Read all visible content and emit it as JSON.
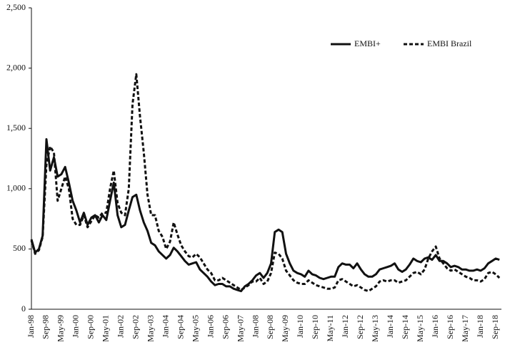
{
  "chart_data": {
    "type": "line",
    "categories": [
      "Jan-98",
      null,
      null,
      null,
      "Sep-98",
      null,
      null,
      null,
      "May-99",
      null,
      null,
      null,
      "Jan-00",
      null,
      null,
      null,
      "Sep-00",
      null,
      null,
      null,
      "May-01",
      null,
      null,
      null,
      "Jan-02",
      null,
      null,
      null,
      "Sep-02",
      null,
      null,
      null,
      "May-03",
      null,
      null,
      null,
      "Jan-04",
      null,
      null,
      null,
      "Sep-04",
      null,
      null,
      null,
      "May-05",
      null,
      null,
      null,
      "Jan-06",
      null,
      null,
      null,
      "Sep-06",
      null,
      null,
      null,
      "May-07",
      null,
      null,
      null,
      "Jan-08",
      null,
      null,
      null,
      "Sep-08",
      null,
      null,
      null,
      "May-09",
      null,
      null,
      null,
      "Jan-10",
      null,
      null,
      null,
      "Sep-10",
      null,
      null,
      null,
      "May-11",
      null,
      null,
      null,
      "Jan-12",
      null,
      null,
      null,
      "Sep-12",
      null,
      null,
      null,
      "May-13",
      null,
      null,
      null,
      "Jan-14",
      null,
      null,
      null,
      "Sep-14",
      null,
      null,
      null,
      "May-15",
      null,
      null,
      null,
      "Jan-16",
      null,
      null,
      null,
      "Sep-16",
      null,
      null,
      null,
      "May-17",
      null,
      null,
      null,
      "Jan-18",
      null,
      null,
      null,
      "Sep-18",
      null
    ],
    "series": [
      {
        "name": "EMBI+",
        "color": "#111111",
        "dash": false,
        "values": [
          580,
          470,
          500,
          610,
          1410,
          1150,
          1260,
          1100,
          1120,
          1180,
          1050,
          900,
          820,
          720,
          800,
          700,
          760,
          780,
          720,
          780,
          740,
          900,
          1050,
          780,
          680,
          700,
          820,
          930,
          950,
          820,
          720,
          650,
          550,
          530,
          480,
          450,
          420,
          450,
          510,
          480,
          440,
          400,
          370,
          380,
          390,
          330,
          300,
          270,
          230,
          200,
          210,
          210,
          190,
          190,
          170,
          160,
          150,
          190,
          210,
          240,
          280,
          300,
          260,
          300,
          380,
          640,
          660,
          640,
          460,
          380,
          320,
          300,
          290,
          270,
          320,
          290,
          280,
          260,
          250,
          260,
          270,
          270,
          350,
          380,
          370,
          370,
          340,
          380,
          330,
          290,
          270,
          270,
          290,
          330,
          340,
          350,
          360,
          380,
          330,
          310,
          330,
          370,
          420,
          400,
          390,
          420,
          430,
          410,
          450,
          400,
          400,
          380,
          350,
          360,
          350,
          330,
          330,
          320,
          320,
          330,
          320,
          340,
          380,
          400,
          420,
          410
        ]
      },
      {
        "name": "EMBI Brazil",
        "color": "#111111",
        "dash": true,
        "values": [
          570,
          460,
          490,
          600,
          1200,
          1350,
          1300,
          900,
          1000,
          1100,
          1000,
          750,
          700,
          700,
          780,
          680,
          730,
          780,
          760,
          800,
          800,
          1000,
          1150,
          880,
          800,
          780,
          1000,
          1700,
          1950,
          1600,
          1300,
          950,
          780,
          780,
          650,
          600,
          500,
          560,
          720,
          620,
          530,
          480,
          440,
          430,
          460,
          430,
          380,
          330,
          300,
          240,
          240,
          260,
          240,
          220,
          200,
          180,
          160,
          180,
          200,
          230,
          230,
          260,
          210,
          230,
          300,
          470,
          460,
          420,
          320,
          280,
          240,
          220,
          210,
          210,
          240,
          220,
          200,
          190,
          180,
          170,
          170,
          180,
          240,
          250,
          230,
          210,
          190,
          200,
          180,
          160,
          150,
          170,
          190,
          230,
          240,
          230,
          240,
          240,
          220,
          230,
          240,
          270,
          300,
          310,
          290,
          330,
          420,
          480,
          520,
          420,
          380,
          340,
          320,
          330,
          310,
          290,
          270,
          260,
          240,
          240,
          230,
          250,
          300,
          310,
          290,
          260
        ]
      }
    ],
    "ylim": [
      0,
      2500
    ],
    "yticks": [
      0,
      500,
      {
        "value": 1000,
        "label": "1,000"
      },
      {
        "value": 1500,
        "label": "1,500"
      },
      {
        "value": 2000,
        "label": "2,000"
      },
      {
        "value": 2500,
        "label": "2,500"
      }
    ],
    "legend": "upper right"
  }
}
